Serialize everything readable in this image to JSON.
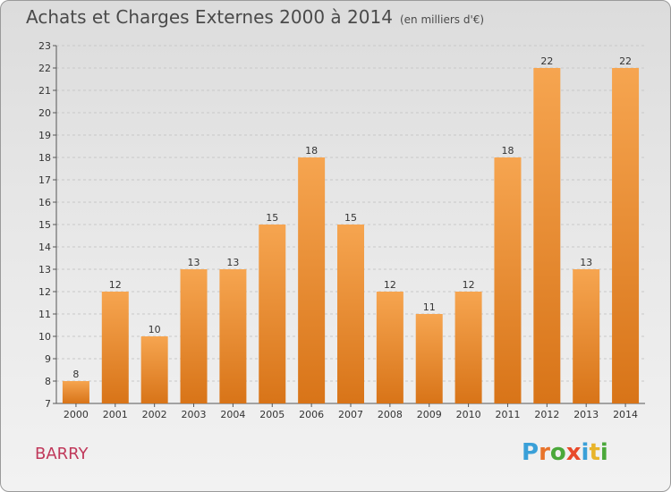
{
  "title": "Achats et Charges Externes 2000 à 2014",
  "subtitle": "(en milliers d'€)",
  "commune": "BARRY",
  "logo_text": "Proxiti",
  "logo_colors": [
    "#3aa0d8",
    "#e8732a",
    "#4aa83a",
    "#e84a2a",
    "#3aa0d8",
    "#e8b42a",
    "#4aa83a"
  ],
  "colors": {
    "bar_top": "#f6a550",
    "bar_bottom": "#d87418",
    "grid": "#c8c8c8",
    "title": "#4a4a4a",
    "commune": "#c0385a"
  },
  "chart_data": {
    "type": "bar",
    "categories": [
      "2000",
      "2001",
      "2002",
      "2003",
      "2004",
      "2005",
      "2006",
      "2007",
      "2008",
      "2009",
      "2010",
      "2011",
      "2012",
      "2013",
      "2014"
    ],
    "values": [
      8,
      12,
      10,
      13,
      13,
      15,
      18,
      15,
      12,
      11,
      12,
      18,
      22,
      13,
      22
    ],
    "ylim": [
      7,
      23
    ],
    "yticks": [
      7,
      8,
      9,
      10,
      11,
      12,
      13,
      14,
      15,
      16,
      17,
      18,
      19,
      20,
      21,
      22,
      23
    ],
    "grid": true
  }
}
